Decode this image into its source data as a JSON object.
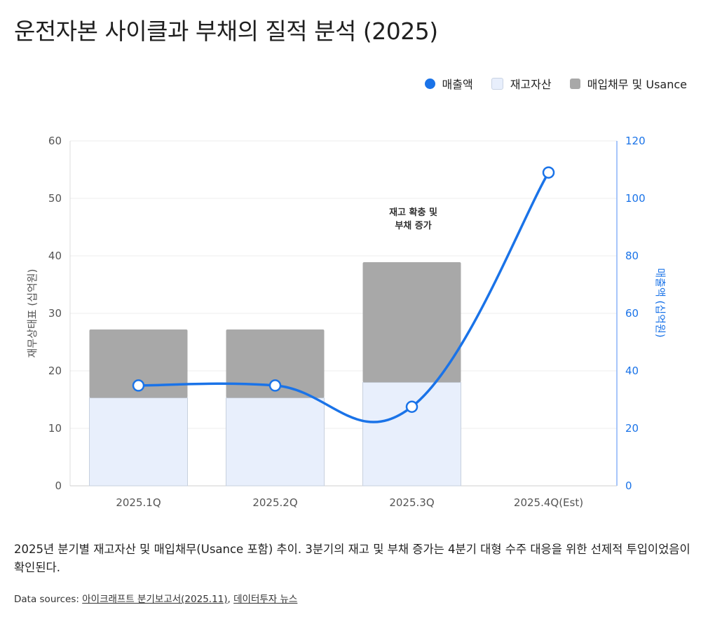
{
  "title": "운전자본 사이클과 부채의 질적 분석 (2025)",
  "legend": [
    {
      "label": "매출액",
      "color": "#1a73e8",
      "shape": "circle"
    },
    {
      "label": "재고자산",
      "color": "#e8effc",
      "shape": "square"
    },
    {
      "label": "매입채무 및 Usance",
      "color": "#a8a8a8",
      "shape": "square"
    }
  ],
  "chart_data": {
    "type": "bar",
    "stacked": true,
    "categories": [
      "2025.1Q",
      "2025.2Q",
      "2025.3Q",
      "2025.4Q(Est)"
    ],
    "series": [
      {
        "name": "재고자산",
        "values": [
          15.3,
          15.3,
          18.0,
          null
        ],
        "axis": "left",
        "color": "#e8effc"
      },
      {
        "name": "매입채무 및 Usance",
        "values": [
          11.9,
          11.9,
          20.9,
          null
        ],
        "axis": "left",
        "color": "#a8a8a8"
      },
      {
        "name": "매출액",
        "type": "line",
        "values": [
          34.9,
          34.9,
          27.5,
          109
        ],
        "axis": "right",
        "color": "#1a73e8"
      }
    ],
    "ylabel": "재무상태표 (십억원)",
    "ylim": [
      0,
      60
    ],
    "yticks": [
      0,
      10,
      20,
      30,
      40,
      50,
      60
    ],
    "y2label": "매출액 (십억원)",
    "y2lim": [
      0,
      120
    ],
    "y2ticks": [
      0,
      20,
      40,
      60,
      80,
      100,
      120
    ],
    "annotation": {
      "lines": [
        "재고 확충 및",
        "부채 증가"
      ],
      "category": "2025.3Q"
    },
    "grid": true,
    "legend_position": "top-right"
  },
  "caption": "2025년 분기별 재고자산 및 매입채무(Usance 포함) 추이. 3분기의 재고 및 부채 증가는 4분기 대형 수주 대응을 위한 선제적 투입이었음이 확인된다.",
  "sources": {
    "label": "Data sources:",
    "links": [
      "아이크래프트 분기보고서(2025.11)",
      "데이터투자 뉴스"
    ]
  }
}
